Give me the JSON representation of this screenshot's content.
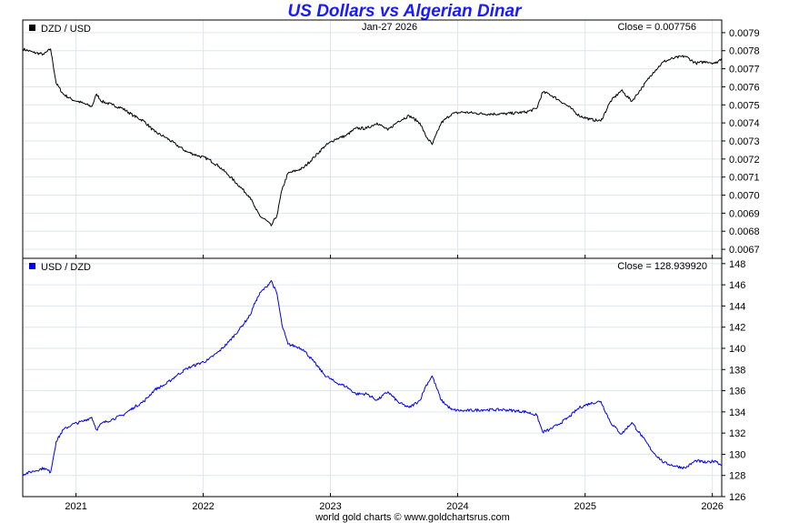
{
  "title": "US Dollars vs Algerian Dinar",
  "footer": "world gold charts © www.goldchartsrus.com",
  "chart_data": [
    {
      "type": "line",
      "legend_label": "DZD / USD",
      "date_label": "Jan-27  2026",
      "close_label": "Close = 0.007756",
      "series_color": "#000000",
      "ylim": [
        0.00665,
        0.00797
      ],
      "y_ticks": [
        "0.0067",
        "0.0068",
        "0.0069",
        "0.0070",
        "0.0071",
        "0.0072",
        "0.0073",
        "0.0074",
        "0.0075",
        "0.0076",
        "0.0077",
        "0.0078",
        "0.0079"
      ],
      "x_ticks": [
        "2021",
        "2022",
        "2023",
        "2024",
        "2025",
        "2026"
      ],
      "grid": true,
      "points": [
        [
          "2020-08-01",
          0.00781
        ],
        [
          "2020-09-01",
          0.00779
        ],
        [
          "2020-10-01",
          0.00778
        ],
        [
          "2020-10-20",
          0.00781
        ],
        [
          "2020-11-05",
          0.00762
        ],
        [
          "2020-11-25",
          0.00756
        ],
        [
          "2020-12-20",
          0.00753
        ],
        [
          "2021-01-20",
          0.00751
        ],
        [
          "2021-02-15",
          0.00749
        ],
        [
          "2021-03-01",
          0.00756
        ],
        [
          "2021-03-15",
          0.00752
        ],
        [
          "2021-04-15",
          0.0075
        ],
        [
          "2021-05-15",
          0.00748
        ],
        [
          "2021-06-15",
          0.00744
        ],
        [
          "2021-07-15",
          0.00741
        ],
        [
          "2021-08-15",
          0.00735
        ],
        [
          "2021-09-15",
          0.00732
        ],
        [
          "2021-10-15",
          0.00728
        ],
        [
          "2021-11-15",
          0.00724
        ],
        [
          "2021-12-15",
          0.00722
        ],
        [
          "2022-01-15",
          0.0072
        ],
        [
          "2022-02-15",
          0.00716
        ],
        [
          "2022-03-15",
          0.00711
        ],
        [
          "2022-04-15",
          0.00705
        ],
        [
          "2022-05-15",
          0.00699
        ],
        [
          "2022-06-01",
          0.00692
        ],
        [
          "2022-06-15",
          0.00688
        ],
        [
          "2022-07-01",
          0.00686
        ],
        [
          "2022-07-15",
          0.00683
        ],
        [
          "2022-08-01",
          0.00689
        ],
        [
          "2022-08-15",
          0.00703
        ],
        [
          "2022-09-01",
          0.00712
        ],
        [
          "2022-10-01",
          0.00714
        ],
        [
          "2022-10-15",
          0.00715
        ],
        [
          "2022-11-15",
          0.00721
        ],
        [
          "2022-12-15",
          0.00727
        ],
        [
          "2023-01-15",
          0.00731
        ],
        [
          "2023-02-15",
          0.00733
        ],
        [
          "2023-03-15",
          0.00737
        ],
        [
          "2023-04-15",
          0.00737
        ],
        [
          "2023-05-15",
          0.0074
        ],
        [
          "2023-06-15",
          0.00736
        ],
        [
          "2023-07-15",
          0.00741
        ],
        [
          "2023-08-15",
          0.00744
        ],
        [
          "2023-09-15",
          0.0074
        ],
        [
          "2023-10-01",
          0.00733
        ],
        [
          "2023-10-20",
          0.00728
        ],
        [
          "2023-11-15",
          0.0074
        ],
        [
          "2023-12-15",
          0.00745
        ],
        [
          "2024-01-15",
          0.00746
        ],
        [
          "2024-03-15",
          0.00745
        ],
        [
          "2024-05-15",
          0.00745
        ],
        [
          "2024-07-15",
          0.00746
        ],
        [
          "2024-08-15",
          0.00748
        ],
        [
          "2024-09-01",
          0.00757
        ],
        [
          "2024-09-20",
          0.00756
        ],
        [
          "2024-10-15",
          0.00753
        ],
        [
          "2024-11-15",
          0.00749
        ],
        [
          "2024-12-15",
          0.00744
        ],
        [
          "2025-01-15",
          0.00742
        ],
        [
          "2025-02-15",
          0.00741
        ],
        [
          "2025-03-15",
          0.00752
        ],
        [
          "2025-04-15",
          0.00758
        ],
        [
          "2025-05-15",
          0.00752
        ],
        [
          "2025-06-15",
          0.0076
        ],
        [
          "2025-07-15",
          0.00768
        ],
        [
          "2025-08-15",
          0.00774
        ],
        [
          "2025-09-15",
          0.00776
        ],
        [
          "2025-10-15",
          0.00777
        ],
        [
          "2025-11-15",
          0.00773
        ],
        [
          "2025-12-15",
          0.00774
        ],
        [
          "2026-01-10",
          0.00773
        ],
        [
          "2026-01-27",
          0.007756
        ]
      ]
    },
    {
      "type": "line",
      "legend_label": "USD / DZD",
      "close_label": "Close = 128.939920",
      "series_color": "#0000ee",
      "ylim": [
        126,
        148.5
      ],
      "y_ticks": [
        "126",
        "128",
        "130",
        "132",
        "134",
        "136",
        "138",
        "140",
        "142",
        "144",
        "146",
        "148"
      ],
      "x_ticks": [
        "2021",
        "2022",
        "2023",
        "2024",
        "2025",
        "2026"
      ],
      "grid": true,
      "points": [
        [
          "2020-08-01",
          128.1
        ],
        [
          "2020-09-01",
          128.4
        ],
        [
          "2020-10-01",
          128.7
        ],
        [
          "2020-10-20",
          128.3
        ],
        [
          "2020-11-05",
          131.2
        ],
        [
          "2020-11-25",
          132.3
        ],
        [
          "2020-12-20",
          132.8
        ],
        [
          "2021-01-20",
          133.1
        ],
        [
          "2021-02-15",
          133.5
        ],
        [
          "2021-03-01",
          132.3
        ],
        [
          "2021-03-15",
          132.9
        ],
        [
          "2021-04-15",
          133.3
        ],
        [
          "2021-05-15",
          133.7
        ],
        [
          "2021-06-15",
          134.4
        ],
        [
          "2021-07-15",
          135.0
        ],
        [
          "2021-08-15",
          136.1
        ],
        [
          "2021-09-15",
          136.6
        ],
        [
          "2021-10-15",
          137.4
        ],
        [
          "2021-11-15",
          138.1
        ],
        [
          "2021-12-15",
          138.5
        ],
        [
          "2022-01-15",
          138.9
        ],
        [
          "2022-02-15",
          139.7
        ],
        [
          "2022-03-15",
          140.6
        ],
        [
          "2022-04-15",
          141.8
        ],
        [
          "2022-05-15",
          143.1
        ],
        [
          "2022-06-01",
          144.5
        ],
        [
          "2022-06-15",
          145.3
        ],
        [
          "2022-07-01",
          145.8
        ],
        [
          "2022-07-15",
          146.4
        ],
        [
          "2022-08-01",
          145.1
        ],
        [
          "2022-08-15",
          142.2
        ],
        [
          "2022-09-01",
          140.4
        ],
        [
          "2022-10-01",
          140.1
        ],
        [
          "2022-10-15",
          139.9
        ],
        [
          "2022-11-15",
          138.7
        ],
        [
          "2022-12-15",
          137.5
        ],
        [
          "2023-01-15",
          136.8
        ],
        [
          "2023-02-15",
          136.4
        ],
        [
          "2023-03-15",
          135.7
        ],
        [
          "2023-04-15",
          135.7
        ],
        [
          "2023-05-15",
          135.1
        ],
        [
          "2023-06-15",
          135.9
        ],
        [
          "2023-07-15",
          134.9
        ],
        [
          "2023-08-15",
          134.4
        ],
        [
          "2023-09-15",
          135.1
        ],
        [
          "2023-10-01",
          136.4
        ],
        [
          "2023-10-20",
          137.4
        ],
        [
          "2023-11-15",
          135.1
        ],
        [
          "2023-12-15",
          134.2
        ],
        [
          "2024-01-15",
          134.1
        ],
        [
          "2024-03-15",
          134.2
        ],
        [
          "2024-05-15",
          134.2
        ],
        [
          "2024-07-15",
          134.0
        ],
        [
          "2024-08-15",
          133.7
        ],
        [
          "2024-09-01",
          132.1
        ],
        [
          "2024-09-20",
          132.3
        ],
        [
          "2024-10-15",
          132.8
        ],
        [
          "2024-11-15",
          133.5
        ],
        [
          "2024-12-15",
          134.4
        ],
        [
          "2025-01-15",
          134.8
        ],
        [
          "2025-02-15",
          135.0
        ],
        [
          "2025-03-15",
          133.0
        ],
        [
          "2025-04-15",
          131.9
        ],
        [
          "2025-05-15",
          133.0
        ],
        [
          "2025-06-15",
          131.6
        ],
        [
          "2025-07-15",
          130.2
        ],
        [
          "2025-08-15",
          129.2
        ],
        [
          "2025-09-15",
          128.9
        ],
        [
          "2025-10-15",
          128.7
        ],
        [
          "2025-11-15",
          129.4
        ],
        [
          "2025-12-15",
          129.2
        ],
        [
          "2026-01-10",
          129.4
        ],
        [
          "2026-01-27",
          128.93992
        ]
      ]
    }
  ]
}
